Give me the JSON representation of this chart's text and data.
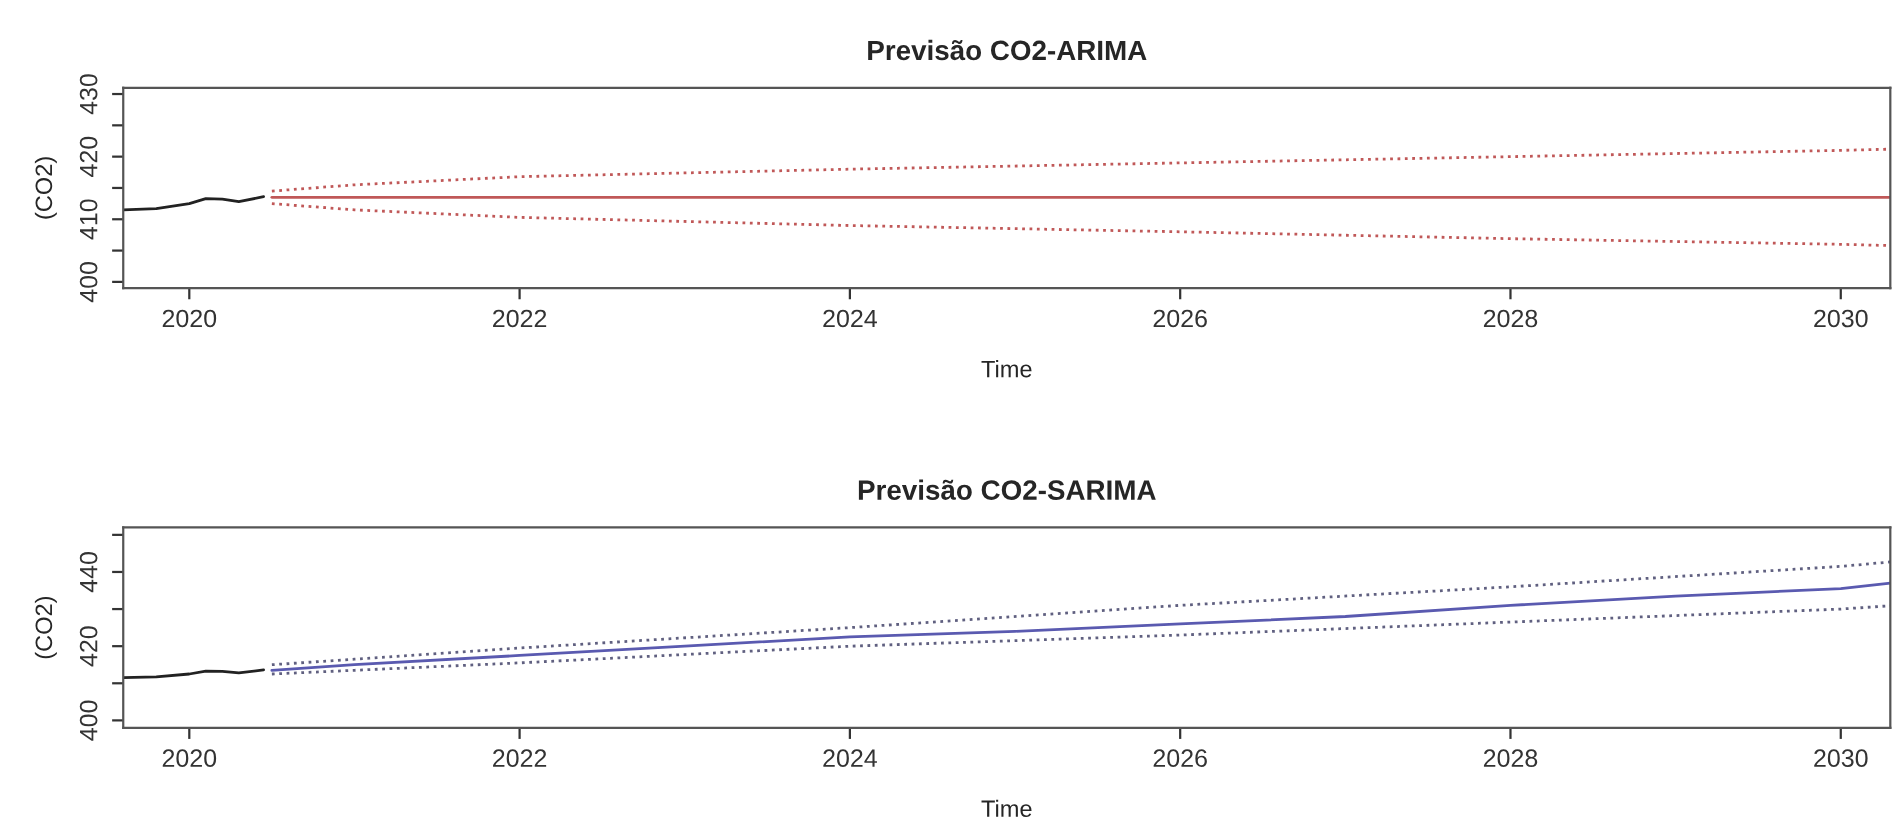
{
  "chart_data": [
    {
      "type": "line",
      "title": "Previsão CO2-ARIMA",
      "xlabel": "Time",
      "ylabel": "(CO2)",
      "xlim": [
        2019.6,
        2030.3
      ],
      "ylim": [
        399,
        431
      ],
      "xticks": [
        2020,
        2022,
        2024,
        2026,
        2028,
        2030
      ],
      "yticks": [
        400,
        {
          "value": 405,
          "label": null
        },
        410,
        {
          "value": 415,
          "label": null
        },
        420,
        {
          "value": 425,
          "label": null
        },
        430
      ],
      "series": [
        {
          "color": "#222222",
          "line_style": "solid",
          "x": [
            2019.6,
            2019.8,
            2020.0,
            2020.1,
            2020.2,
            2020.3,
            2020.45
          ],
          "values": [
            411.5,
            411.7,
            412.5,
            413.3,
            413.2,
            412.8,
            413.6
          ]
        },
        {
          "color": "#c05858",
          "line_style": "solid",
          "x": [
            2020.5,
            2030.3
          ],
          "values": [
            413.5,
            413.5
          ]
        },
        {
          "color": "#c05858",
          "line_style": "dotted",
          "x": [
            2020.5,
            2021,
            2022,
            2024,
            2026,
            2028,
            2030,
            2030.3
          ],
          "values": [
            414.5,
            415.5,
            416.8,
            418,
            419,
            420,
            421,
            421.2
          ]
        },
        {
          "color": "#c05858",
          "line_style": "dotted",
          "x": [
            2020.5,
            2021,
            2022,
            2024,
            2026,
            2028,
            2030,
            2030.3
          ],
          "values": [
            412.5,
            411.5,
            410.3,
            409,
            408,
            406.9,
            406,
            405.8
          ]
        }
      ]
    },
    {
      "type": "line",
      "title": "Previsão CO2-SARIMA",
      "xlabel": "Time",
      "ylabel": "(CO2)",
      "xlim": [
        2019.6,
        2030.3
      ],
      "ylim": [
        398,
        452
      ],
      "xticks": [
        2020,
        2022,
        2024,
        2026,
        2028,
        2030
      ],
      "yticks": [
        400,
        {
          "value": 410,
          "label": null
        },
        420,
        {
          "value": 430,
          "label": null
        },
        440,
        {
          "value": 450,
          "label": null
        }
      ],
      "series": [
        {
          "color": "#222222",
          "line_style": "solid",
          "x": [
            2019.6,
            2019.8,
            2020.0,
            2020.1,
            2020.2,
            2020.3,
            2020.45
          ],
          "values": [
            411.5,
            411.7,
            412.5,
            413.3,
            413.2,
            412.8,
            413.6
          ]
        },
        {
          "color": "#5a5ab0",
          "line_style": "solid",
          "x": [
            2020.5,
            2021,
            2022,
            2023,
            2024,
            2025,
            2026,
            2027,
            2028,
            2029,
            2030,
            2030.3
          ],
          "values": [
            413.5,
            415,
            417.5,
            420,
            422.5,
            424,
            426,
            428,
            431,
            433.5,
            435.5,
            437
          ]
        },
        {
          "color": "#606080",
          "line_style": "dotted",
          "x": [
            2020.5,
            2021,
            2022,
            2024,
            2026,
            2028,
            2030,
            2030.3
          ],
          "values": [
            415,
            416.5,
            419.5,
            425,
            431,
            436,
            441.5,
            442.7
          ]
        },
        {
          "color": "#606080",
          "line_style": "dotted",
          "x": [
            2020.5,
            2021,
            2022,
            2024,
            2026,
            2028,
            2030,
            2030.3
          ],
          "values": [
            412.5,
            413.5,
            415.5,
            420,
            423,
            426.5,
            430,
            430.9
          ]
        }
      ]
    }
  ]
}
